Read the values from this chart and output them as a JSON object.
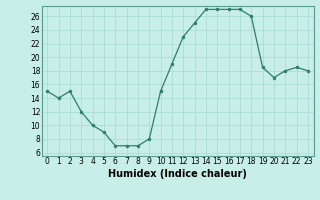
{
  "x": [
    0,
    1,
    2,
    3,
    4,
    5,
    6,
    7,
    8,
    9,
    10,
    11,
    12,
    13,
    14,
    15,
    16,
    17,
    18,
    19,
    20,
    21,
    22,
    23
  ],
  "y": [
    15,
    14,
    15,
    12,
    10,
    9,
    7,
    7,
    7,
    8,
    15,
    19,
    23,
    25,
    27,
    27,
    27,
    27,
    26,
    18.5,
    17,
    18,
    18.5,
    18
  ],
  "line_color": "#2e7d6e",
  "marker": "o",
  "marker_size": 2,
  "bg_color": "#c8eee8",
  "grid_color": "#aaddd6",
  "xlabel": "Humidex (Indice chaleur)",
  "ylabel": "",
  "title": "",
  "ylim": [
    5.5,
    27.5
  ],
  "xlim": [
    -0.5,
    23.5
  ],
  "yticks": [
    6,
    8,
    10,
    12,
    14,
    16,
    18,
    20,
    22,
    24,
    26
  ],
  "xticks": [
    0,
    1,
    2,
    3,
    4,
    5,
    6,
    7,
    8,
    9,
    10,
    11,
    12,
    13,
    14,
    15,
    16,
    17,
    18,
    19,
    20,
    21,
    22,
    23
  ],
  "tick_fontsize": 5.5,
  "xlabel_fontsize": 7,
  "xlabel_fontweight": "bold"
}
